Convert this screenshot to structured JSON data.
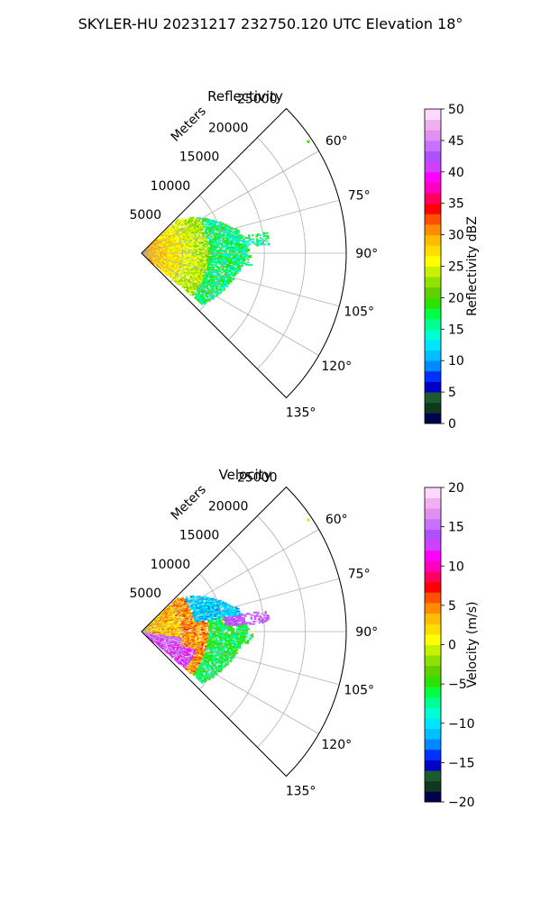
{
  "figure": {
    "suptitle": "SKYLER-HU  20231217  232750.120 UTC Elevation 18°"
  },
  "chart_data": [
    {
      "type": "heatmap",
      "projection": "polar-sector",
      "title": "Reflectivity",
      "radial_label": "Meters",
      "radial_ticks": [
        5000,
        10000,
        15000,
        20000,
        25000
      ],
      "radial_tick_labels": [
        "5000",
        "10000",
        "15000",
        "20000",
        "25000"
      ],
      "rlim": [
        0,
        25000
      ],
      "angle_range_deg": [
        45,
        135
      ],
      "angle_ticks": [
        60,
        75,
        90,
        105,
        120,
        135
      ],
      "angle_tick_labels": [
        "60°",
        "75°",
        "90°",
        "105°",
        "120°",
        "135°"
      ],
      "grid": true,
      "colorbar": {
        "label": "Reflectivity dBZ",
        "range": [
          0,
          50
        ],
        "ticks": [
          0,
          5,
          10,
          15,
          20,
          25,
          30,
          35,
          40,
          45,
          50
        ],
        "tick_labels": [
          "0",
          "5",
          "10",
          "15",
          "20",
          "25",
          "30",
          "35",
          "40",
          "45",
          "50"
        ],
        "colors": [
          "#00004d",
          "#0c3a1a",
          "#1c5a30",
          "#0000c8",
          "#0030ff",
          "#0088ff",
          "#00bfff",
          "#00e5ff",
          "#00ffd0",
          "#00ff90",
          "#00ff40",
          "#30e000",
          "#60d000",
          "#90e000",
          "#c8f000",
          "#ffff00",
          "#ffdd00",
          "#ffbb00",
          "#ff8c00",
          "#ff5000",
          "#ff0000",
          "#ff0060",
          "#ff00c0",
          "#ff00ff",
          "#d040ff",
          "#b050ff",
          "#c870ff",
          "#e090f0",
          "#f0b0f0",
          "#ffd8ff"
        ]
      },
      "echo_summary": {
        "near_range_m": [
          0,
          8000
        ],
        "near_range_dbz": [
          20,
          30
        ],
        "mid_range_m": [
          8000,
          14000
        ],
        "mid_range_dbz": [
          12,
          22
        ]
      }
    },
    {
      "type": "heatmap",
      "projection": "polar-sector",
      "title": "Velocity",
      "radial_label": "Meters",
      "radial_ticks": [
        5000,
        10000,
        15000,
        20000,
        25000
      ],
      "radial_tick_labels": [
        "5000",
        "10000",
        "15000",
        "20000",
        "25000"
      ],
      "rlim": [
        0,
        25000
      ],
      "angle_range_deg": [
        45,
        135
      ],
      "angle_ticks": [
        60,
        75,
        90,
        105,
        120,
        135
      ],
      "angle_tick_labels": [
        "60°",
        "75°",
        "90°",
        "105°",
        "120°",
        "135°"
      ],
      "grid": true,
      "colorbar": {
        "label": "Velocity (m/s)",
        "range": [
          -20,
          20
        ],
        "ticks": [
          -20,
          -15,
          -10,
          -5,
          0,
          5,
          10,
          15,
          20
        ],
        "tick_labels": [
          "−20",
          "−15",
          "−10",
          "−5",
          "0",
          "5",
          "10",
          "15",
          "20"
        ],
        "colors": [
          "#00004d",
          "#0c3a1a",
          "#1c5a30",
          "#0000c8",
          "#0030ff",
          "#0088ff",
          "#00bfff",
          "#00e5ff",
          "#00ffd0",
          "#00ff90",
          "#00ff40",
          "#30e000",
          "#60d000",
          "#90e000",
          "#c8f000",
          "#ffff00",
          "#ffdd00",
          "#ffbb00",
          "#ff8c00",
          "#ff5000",
          "#ff0000",
          "#ff0060",
          "#ff00c0",
          "#ff00ff",
          "#d040ff",
          "#b050ff",
          "#c870ff",
          "#e090f0",
          "#f0b0f0",
          "#ffd8ff"
        ]
      },
      "echo_summary": {
        "near_range_ms": [
          -5,
          15
        ],
        "far_range_ms": [
          -15,
          10
        ]
      }
    }
  ]
}
